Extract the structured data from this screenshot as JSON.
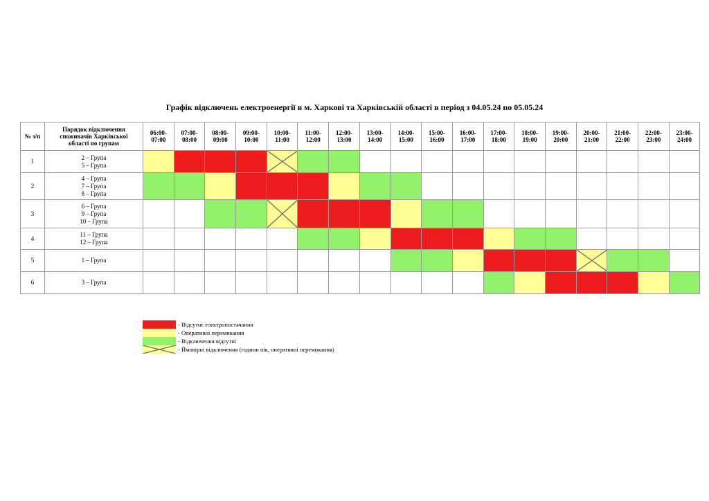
{
  "title": "Графік відключень електроенергії в м. Харкові та Харківській області в період з 04.05.24 по 05.05.24",
  "table": {
    "header_num": "№ з/п",
    "header_groups": [
      "Порядок відключення",
      "споживачів Харківської",
      "області по групам"
    ],
    "hours": [
      [
        "06:00-",
        "07:00"
      ],
      [
        "07:00-",
        "08:00"
      ],
      [
        "08:00-",
        "09:00"
      ],
      [
        "09:00-",
        "10:00"
      ],
      [
        "10:00-",
        "11:00"
      ],
      [
        "11:00-",
        "12:00"
      ],
      [
        "12:00-",
        "13:00"
      ],
      [
        "13:00-",
        "14:00"
      ],
      [
        "14:00-",
        "15:00"
      ],
      [
        "15:00-",
        "16:00"
      ],
      [
        "16:00-",
        "17:00"
      ],
      [
        "17:00-",
        "18:00"
      ],
      [
        "18:00-",
        "19:00"
      ],
      [
        "19:00-",
        "20:00"
      ],
      [
        "20:00-",
        "21:00"
      ],
      [
        "21:00-",
        "22:00"
      ],
      [
        "22:00-",
        "23:00"
      ],
      [
        "23:00-",
        "24:00"
      ]
    ],
    "rows": [
      {
        "num": "1",
        "groups": [
          "2 – Група",
          "5 – Група"
        ],
        "cells": [
          "Y",
          "R",
          "R",
          "R",
          "X",
          "G",
          "G",
          "",
          "",
          "",
          "",
          "",
          "",
          "",
          "",
          "",
          "",
          ""
        ]
      },
      {
        "num": "2",
        "groups": [
          "4 – Група",
          "7 – Група",
          "8 – Група"
        ],
        "cells": [
          "G",
          "G",
          "Y",
          "R",
          "R",
          "R",
          "Y",
          "G",
          "G",
          "",
          "",
          "",
          "",
          "",
          "",
          "",
          "",
          ""
        ]
      },
      {
        "num": "3",
        "groups": [
          "6 – Група",
          "9 – Група",
          "10 – Група"
        ],
        "cells": [
          "",
          "",
          "G",
          "G",
          "X",
          "R",
          "R",
          "R",
          "Y",
          "G",
          "G",
          "",
          "",
          "",
          "",
          "",
          "",
          ""
        ]
      },
      {
        "num": "4",
        "groups": [
          "11 – Група",
          "12 – Група"
        ],
        "cells": [
          "",
          "",
          "",
          "",
          "",
          "G",
          "G",
          "Y",
          "R",
          "R",
          "R",
          "Y",
          "G",
          "G",
          "",
          "",
          "",
          ""
        ]
      },
      {
        "num": "5",
        "groups": [
          "1 – Група"
        ],
        "cells": [
          "",
          "",
          "",
          "",
          "",
          "",
          "",
          "",
          "G",
          "G",
          "Y",
          "R",
          "R",
          "R",
          "X",
          "G",
          "G",
          ""
        ]
      },
      {
        "num": "6",
        "groups": [
          "3 – Група"
        ],
        "cells": [
          "",
          "",
          "",
          "",
          "",
          "",
          "",
          "",
          "",
          "",
          "",
          "G",
          "Y",
          "R",
          "R",
          "R",
          "Y",
          "G"
        ]
      }
    ]
  },
  "colors": {
    "red": "#ee1c1c",
    "yellow": "#ffff96",
    "green": "#92f36a"
  },
  "legend": [
    {
      "code": "R",
      "label": "- Відсутнє електропостачання"
    },
    {
      "code": "Y",
      "label": "- Оперативні перемикання"
    },
    {
      "code": "G",
      "label": "- Відключення відсутні"
    },
    {
      "code": "X",
      "label": "- Ймовірні відключення (години пік, оперативні перемикання)"
    }
  ]
}
